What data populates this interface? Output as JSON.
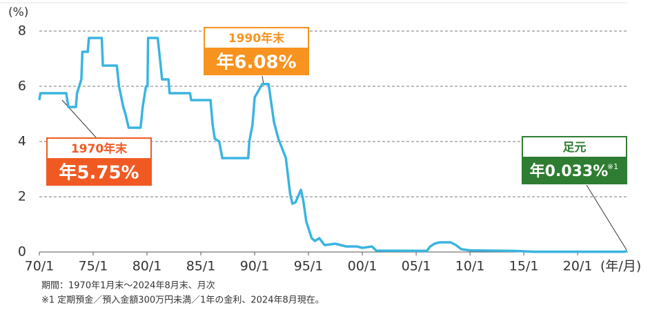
{
  "chart_data": {
    "type": "line",
    "y_unit": "(%)",
    "x_unit": "(年/月)",
    "color": "#3ab4e0",
    "xlim": [
      1970,
      2024.67
    ],
    "ylim": [
      0,
      8
    ],
    "yticks": [
      0,
      2,
      4,
      6,
      8
    ],
    "xticks": [
      {
        "value": 1970,
        "label": "70/1"
      },
      {
        "value": 1975,
        "label": "75/1"
      },
      {
        "value": 1980,
        "label": "80/1"
      },
      {
        "value": 1985,
        "label": "85/1"
      },
      {
        "value": 1990,
        "label": "90/1"
      },
      {
        "value": 1995,
        "label": "95/1"
      },
      {
        "value": 2000,
        "label": "00/1"
      },
      {
        "value": 2005,
        "label": "05/1"
      },
      {
        "value": 2010,
        "label": "10/1"
      },
      {
        "value": 2015,
        "label": "15/1"
      },
      {
        "value": 2020,
        "label": "20/1"
      }
    ],
    "grid": true,
    "x": [
      1970.0,
      1970.1,
      1972.5,
      1972.7,
      1973.4,
      1973.5,
      1973.9,
      1974.0,
      1974.5,
      1974.6,
      1975.8,
      1975.9,
      1977.2,
      1977.4,
      1977.8,
      1978.0,
      1978.3,
      1979.4,
      1979.6,
      1979.9,
      1980.05,
      1980.1,
      1981.0,
      1981.2,
      1981.4,
      1982.0,
      1982.1,
      1984.0,
      1984.1,
      1985.9,
      1986.1,
      1986.3,
      1986.7,
      1986.9,
      1987.0,
      1989.4,
      1989.5,
      1989.8,
      1990.0,
      1990.7,
      1991.3,
      1991.5,
      1991.8,
      1992.2,
      1992.5,
      1992.9,
      1993.3,
      1993.5,
      1993.8,
      1994.3,
      1994.5,
      1994.8,
      1995.3,
      1995.6,
      1996.0,
      1996.5,
      1997.5,
      1998.5,
      1999.5,
      2000.0,
      2000.9,
      2001.3,
      2006.0,
      2006.3,
      2006.7,
      2007.2,
      2008.2,
      2008.7,
      2009.2,
      2010.0,
      2014.0,
      2016.0,
      2024.3,
      2024.6
    ],
    "values": [
      5.5,
      5.75,
      5.75,
      5.25,
      5.25,
      5.75,
      6.25,
      7.25,
      7.25,
      7.75,
      7.75,
      6.75,
      6.75,
      6.0,
      5.25,
      5.0,
      4.5,
      4.5,
      5.25,
      6.0,
      6.0,
      7.75,
      7.75,
      7.0,
      6.25,
      6.25,
      5.75,
      5.75,
      5.5,
      5.5,
      4.6,
      4.1,
      4.0,
      3.6,
      3.4,
      3.4,
      4.0,
      4.6,
      5.6,
      6.08,
      6.08,
      5.5,
      4.7,
      4.1,
      3.8,
      3.4,
      2.1,
      1.75,
      1.8,
      2.25,
      1.9,
      1.1,
      0.5,
      0.4,
      0.5,
      0.25,
      0.3,
      0.2,
      0.2,
      0.15,
      0.2,
      0.05,
      0.04,
      0.2,
      0.3,
      0.35,
      0.35,
      0.25,
      0.1,
      0.06,
      0.04,
      0.01,
      0.01,
      0.033
    ],
    "annotations": [
      {
        "title": "1970年末",
        "text": "年5.75%",
        "color": "#f05a22"
      },
      {
        "title": "1990年末",
        "text": "年6.08%",
        "color": "#f7931e"
      },
      {
        "title": "足元",
        "text": "年0.033%",
        "note": "※1",
        "color": "#2e7d32"
      }
    ],
    "footnotes": [
      "期間：1970年1月末～2024年8月末、月次",
      "※1 定期預金／預入金額300万円未満／1年の金利、2024年8月現在。"
    ]
  }
}
